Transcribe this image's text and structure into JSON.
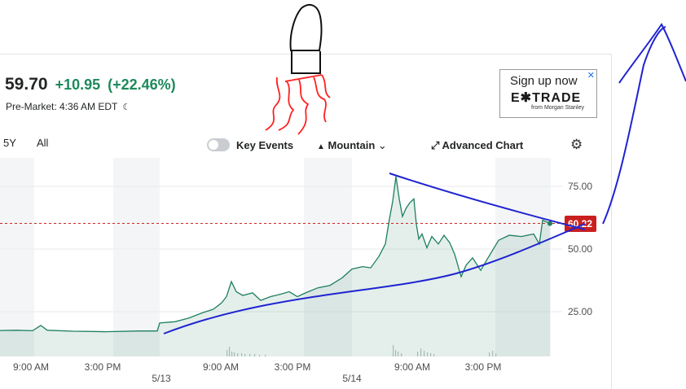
{
  "quote": {
    "price": "59.70",
    "change": "+10.95",
    "change_pct": "(+22.46%)",
    "session": "Pre-Market: 4:36 AM EDT",
    "moon_icon": "☾"
  },
  "ad": {
    "headline": "Sign up now",
    "brand": "E✱TRADE",
    "sub": "from Morgan Stanley",
    "close": "✕"
  },
  "range_tabs": [
    "5Y",
    "All"
  ],
  "controls": {
    "key_events": "Key Events",
    "chart_type": "Mountain",
    "advanced": "Advanced Chart",
    "mountain_icon": "▲",
    "expand_icon": "⤢",
    "chevron_icon": "⌄",
    "gear_icon": "⚙"
  },
  "colors": {
    "line": "#1d7f5e",
    "fill": "#1d7f5e",
    "last_price_badge": "#c9201f",
    "ref_line": "#d02424",
    "positive": "#1d8a5b",
    "annotation_blue": "#1f24d0",
    "annotation_red": "#ff2020"
  },
  "price_label": "60.22",
  "chart_data": {
    "type": "area",
    "y_ticks": [
      "75.00",
      "50.00",
      "25.00"
    ],
    "y_tick_values": [
      75,
      50,
      25
    ],
    "x_ticks": [
      "9:00 AM",
      "3:00 PM",
      "9:00 AM",
      "3:00 PM",
      "9:00 AM",
      "3:00 PM"
    ],
    "x_tick_dates": [
      "5/13",
      "5/14"
    ],
    "last_price": 60.22,
    "points": [
      [
        0,
        17.5
      ],
      [
        20,
        17.6
      ],
      [
        40,
        17.4
      ],
      [
        50,
        19.5
      ],
      [
        58,
        17.6
      ],
      [
        90,
        17.2
      ],
      [
        130,
        17.0
      ],
      [
        170,
        17.3
      ],
      [
        193,
        17.3
      ],
      [
        196,
        20.5
      ],
      [
        215,
        21.0
      ],
      [
        232,
        22.5
      ],
      [
        248,
        24.5
      ],
      [
        262,
        26.0
      ],
      [
        272,
        28.5
      ],
      [
        278,
        31.0
      ],
      [
        284,
        37.0
      ],
      [
        290,
        33.0
      ],
      [
        298,
        31.5
      ],
      [
        310,
        32.5
      ],
      [
        320,
        29.5
      ],
      [
        332,
        31.0
      ],
      [
        345,
        32.0
      ],
      [
        355,
        33.0
      ],
      [
        365,
        31.0
      ],
      [
        375,
        32.5
      ],
      [
        390,
        34.5
      ],
      [
        405,
        35.5
      ],
      [
        420,
        38.5
      ],
      [
        432,
        42.0
      ],
      [
        445,
        43.0
      ],
      [
        455,
        42.5
      ],
      [
        465,
        47.0
      ],
      [
        473,
        52.0
      ],
      [
        478,
        62.0
      ],
      [
        482,
        69.0
      ],
      [
        486,
        79.0
      ],
      [
        490,
        70.0
      ],
      [
        494,
        63.0
      ],
      [
        498,
        66.0
      ],
      [
        503,
        68.5
      ],
      [
        508,
        70.0
      ],
      [
        511,
        60.0
      ],
      [
        514,
        54.0
      ],
      [
        518,
        56.0
      ],
      [
        524,
        50.5
      ],
      [
        530,
        55.0
      ],
      [
        538,
        52.0
      ],
      [
        545,
        55.5
      ],
      [
        552,
        52.5
      ],
      [
        558,
        48.0
      ],
      [
        566,
        39.0
      ],
      [
        572,
        43.5
      ],
      [
        580,
        46.5
      ],
      [
        590,
        41.5
      ],
      [
        600,
        47.0
      ],
      [
        612,
        53.5
      ],
      [
        625,
        55.5
      ],
      [
        640,
        55.0
      ],
      [
        655,
        56.0
      ],
      [
        662,
        52.0
      ],
      [
        666,
        61.5
      ],
      [
        675,
        60.2
      ]
    ],
    "points_note_x_unit": "",
    "volume_note": ""
  }
}
